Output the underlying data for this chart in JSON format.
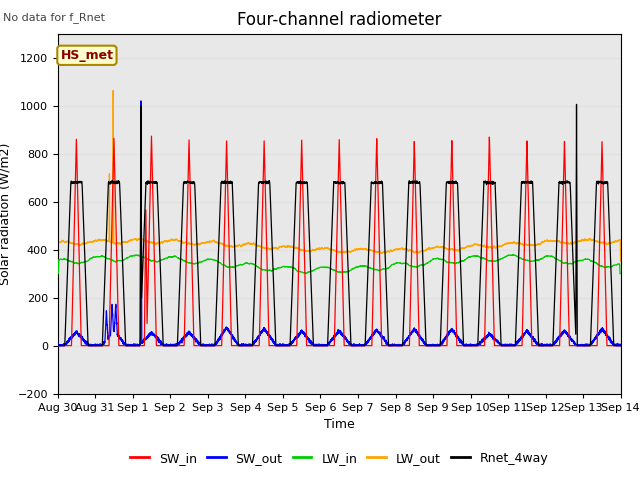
{
  "title": "Four-channel radiometer",
  "subtitle": "No data for f_Rnet",
  "xlabel": "Time",
  "ylabel": "Solar radiation (W/m2)",
  "ylim": [
    -200,
    1300
  ],
  "yticks": [
    -200,
    0,
    200,
    400,
    600,
    800,
    1000,
    1200
  ],
  "n_days": 15,
  "legend_labels": [
    "SW_in",
    "SW_out",
    "LW_in",
    "LW_out",
    "Rnet_4way"
  ],
  "legend_colors": [
    "#ff0000",
    "#0000ff",
    "#00cc00",
    "#ffa500",
    "#000000"
  ],
  "annotation_text": "HS_met",
  "annotation_bg": "#ffffcc",
  "annotation_border": "#aa8800",
  "grid_color": "#e0e0e0",
  "plot_bg": "#e8e8e8",
  "title_fontsize": 12,
  "label_fontsize": 9,
  "tick_fontsize": 8,
  "tick_labels": [
    "Aug 30",
    "Aug 31",
    "Sep 1",
    "Sep 2",
    "Sep 3",
    "Sep 4",
    "Sep 5",
    "Sep 6",
    "Sep 7",
    "Sep 8",
    "Sep 9",
    "Sep 10",
    "Sep 11",
    "Sep 12",
    "Sep 13",
    "Sep 14"
  ],
  "SW_in_peaks": [
    860,
    865,
    875,
    860,
    857,
    858,
    862,
    865,
    868,
    855,
    858,
    872,
    855,
    852,
    850
  ],
  "SW_in_special_spike_day": 2,
  "SW_in_special_spike_val": 570,
  "LW_out_spike_day": 1,
  "LW_out_spike_val": 1090,
  "SW_out_spike_day": 2,
  "SW_out_spike_val": 1070,
  "Rnet_spike_day2": 2,
  "Rnet_spike_val2": 1050,
  "Rnet_spike_day13": 13,
  "Rnet_spike_val13": 1040
}
